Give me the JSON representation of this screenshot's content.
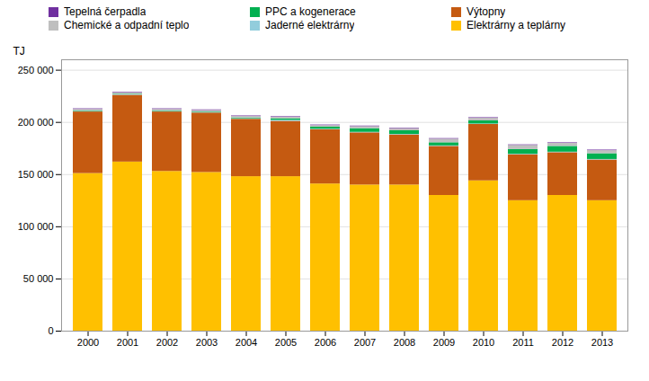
{
  "chart_data": {
    "type": "bar",
    "stacked": true,
    "ylabel": "TJ",
    "categories": [
      "2000",
      "2001",
      "2002",
      "2003",
      "2004",
      "2005",
      "2006",
      "2007",
      "2008",
      "2009",
      "2010",
      "2011",
      "2012",
      "2013"
    ],
    "series": [
      {
        "name": "Elektrárny a teplárny",
        "color": "#FFC000",
        "values": [
          151000,
          162000,
          153000,
          152000,
          148000,
          148000,
          141000,
          140000,
          140000,
          130000,
          144000,
          125000,
          130000,
          125000
        ]
      },
      {
        "name": "Výtopny",
        "color": "#C55A11",
        "values": [
          59000,
          64000,
          57000,
          57000,
          55000,
          53000,
          52000,
          50000,
          48000,
          47000,
          54000,
          44000,
          41000,
          39000
        ]
      },
      {
        "name": "Jaderné elektrárny",
        "color": "#92CDDC",
        "values": [
          500,
          500,
          500,
          500,
          500,
          1000,
          500,
          500,
          500,
          500,
          500,
          500,
          500,
          500
        ]
      },
      {
        "name": "PPC a kogenerace",
        "color": "#00B050",
        "values": [
          500,
          500,
          500,
          500,
          700,
          1500,
          2000,
          3500,
          3500,
          3000,
          3000,
          4500,
          5500,
          5500
        ]
      },
      {
        "name": "Chemické a odpadní teplo",
        "color": "#BFBFBF",
        "values": [
          1500,
          1500,
          1500,
          1500,
          1500,
          1500,
          1500,
          2000,
          2000,
          3500,
          2500,
          4000,
          3000,
          3000
        ]
      },
      {
        "name": "Tepelná čerpadla",
        "color": "#7030A0",
        "values": [
          500,
          500,
          500,
          500,
          500,
          500,
          500,
          500,
          500,
          500,
          500,
          500,
          500,
          500
        ]
      }
    ],
    "ylim": [
      0,
      260000
    ],
    "yticks": [
      0,
      {
        "value": 50000,
        "label": "50 000"
      },
      {
        "value": 100000,
        "label": "100 000"
      },
      {
        "value": 150000,
        "label": "150 000"
      },
      {
        "value": 200000,
        "label": "200 000"
      },
      {
        "value": 250000,
        "label": "250 000"
      }
    ],
    "grid": true,
    "legend": "top"
  }
}
